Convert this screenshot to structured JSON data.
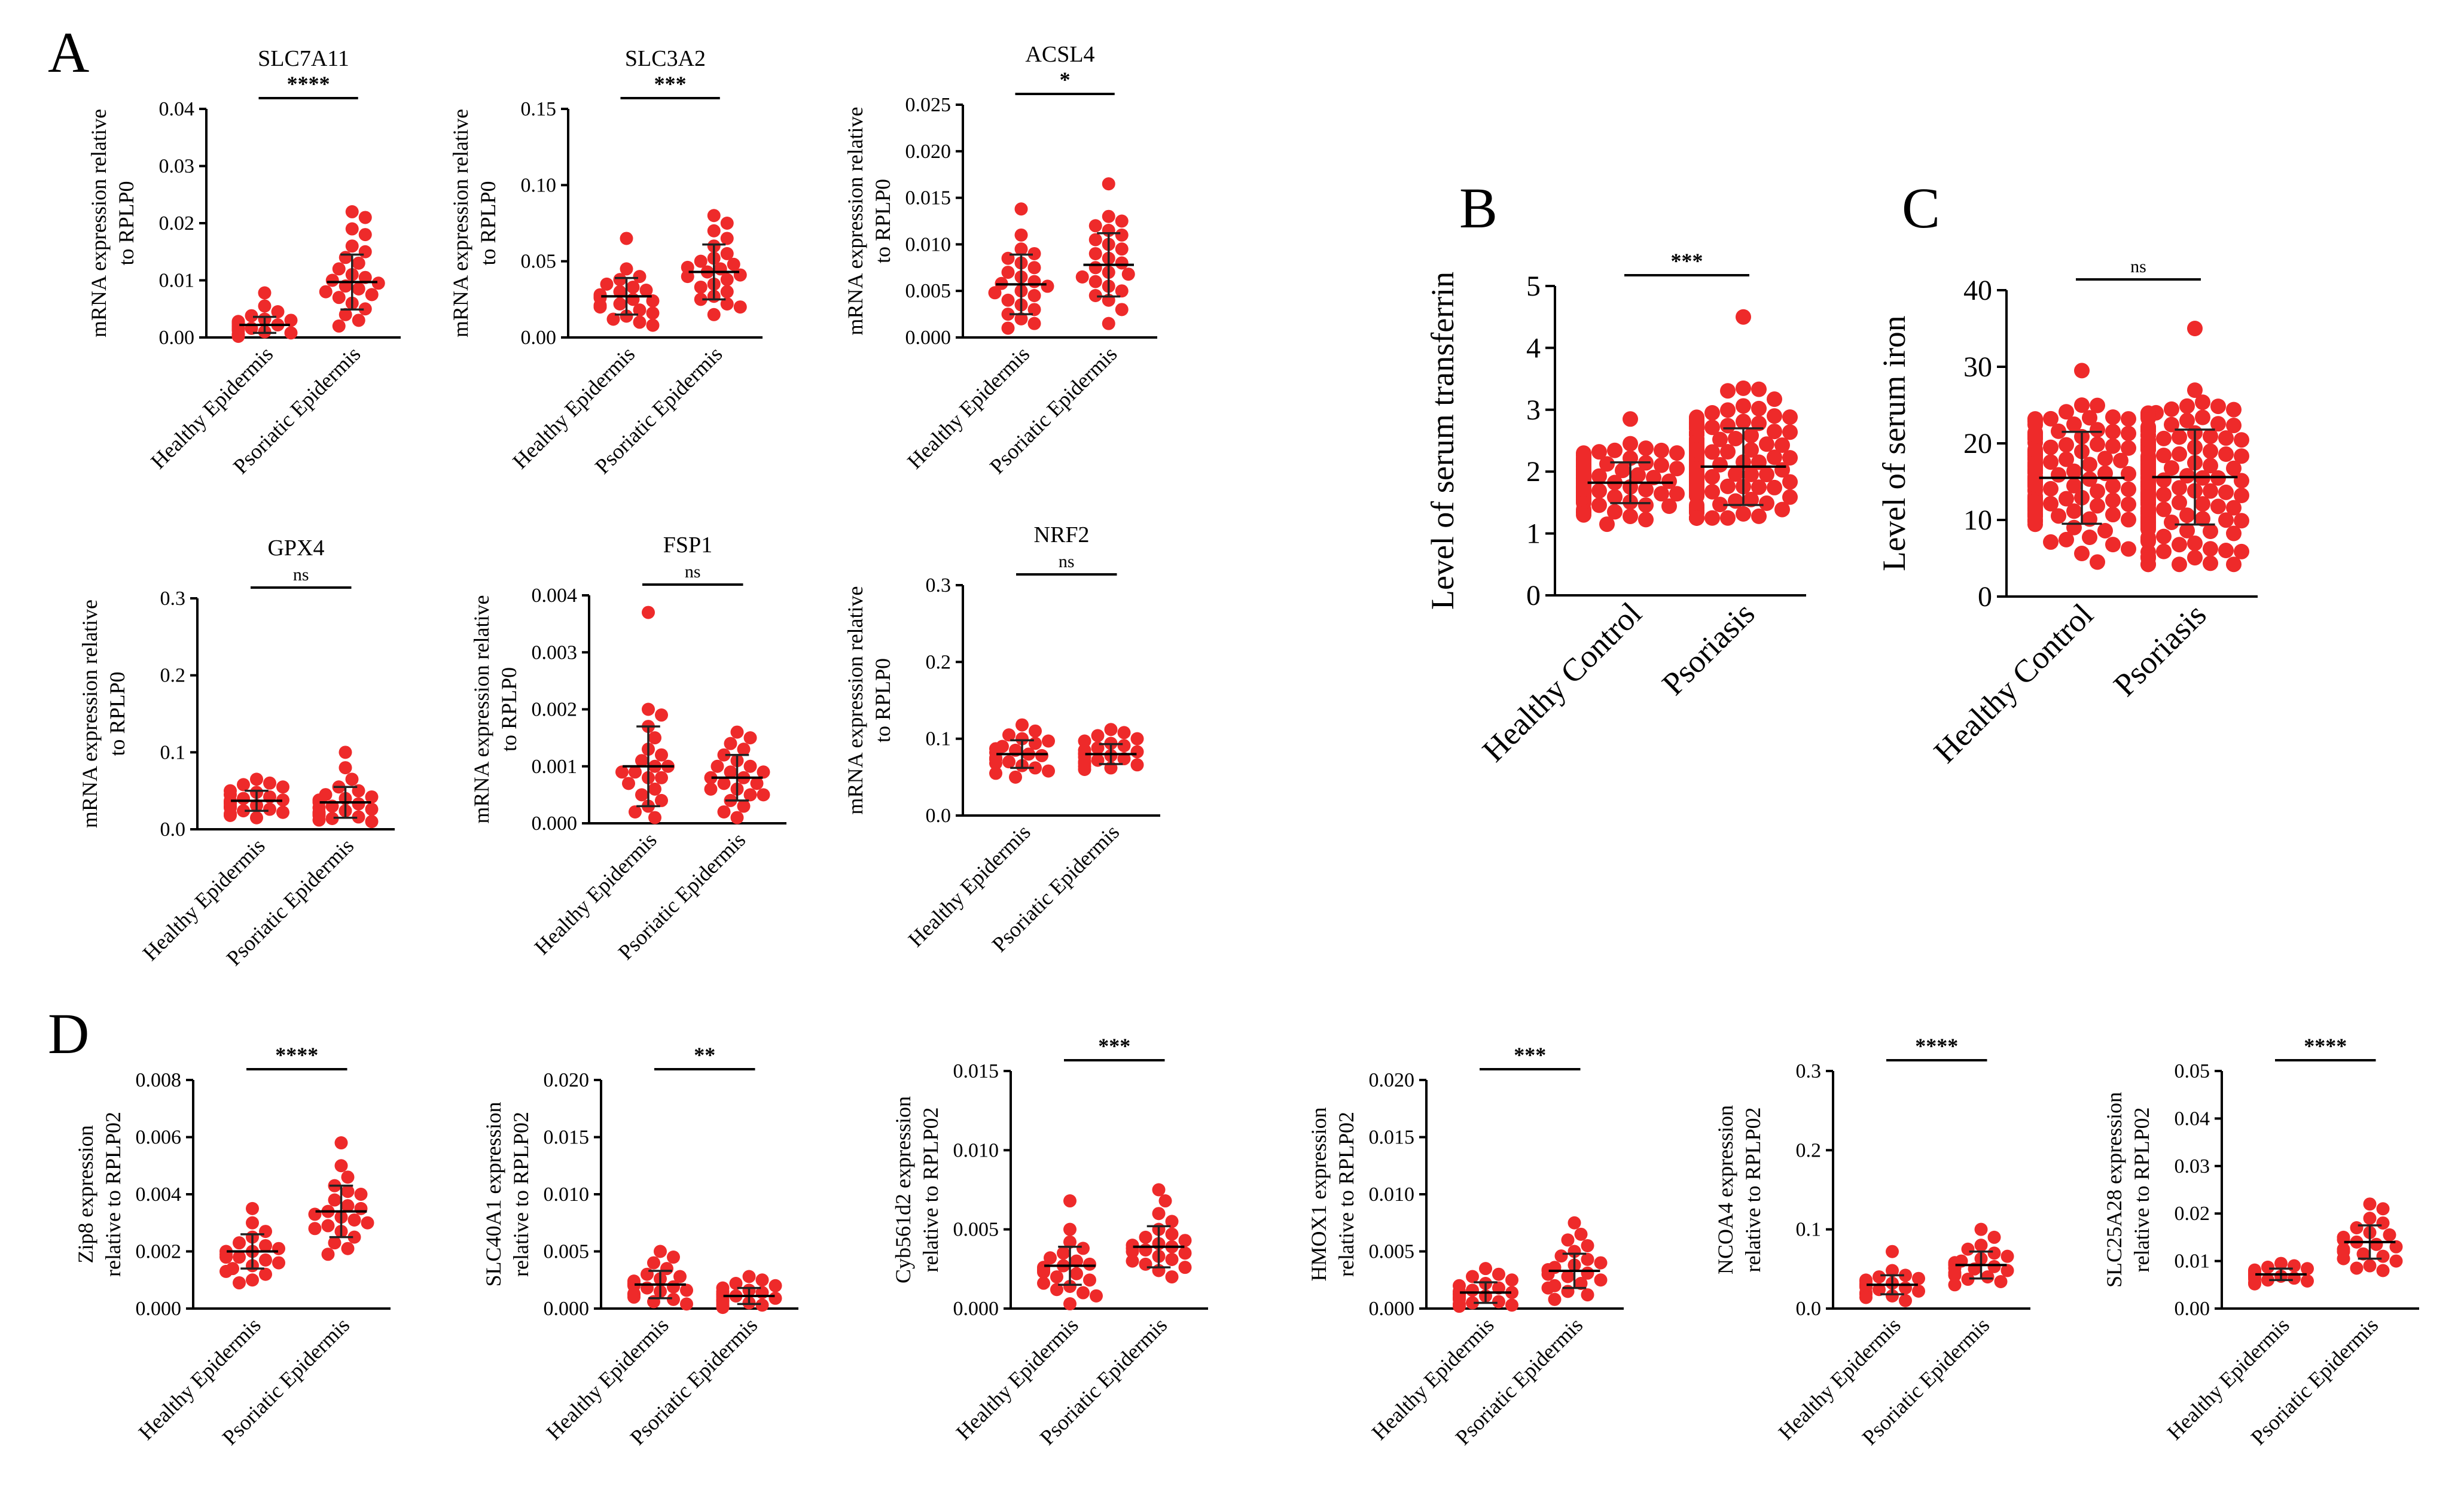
{
  "panel_labels": [
    "A",
    "B",
    "C",
    "D"
  ],
  "point_color": "#ee2a2a",
  "chart_data": [
    {
      "id": "A1",
      "panel": "A",
      "type": "scatter",
      "title": "SLC7A11",
      "ylabel_lines": [
        "mRNA expression relative",
        "to RPLP0"
      ],
      "categories": [
        "Healthy Epidermis",
        "Psoriatic Epidermis"
      ],
      "ylim": [
        0,
        0.04
      ],
      "yticks": [
        "0.00",
        "0.01",
        "0.02",
        "0.03",
        "0.04"
      ],
      "significance": "****",
      "series": [
        {
          "mean": 0.0022,
          "sd": 0.0014,
          "values": [
            0.0078,
            0.0055,
            0.0045,
            0.0038,
            0.0032,
            0.003,
            0.0028,
            0.0026,
            0.0024,
            0.0022,
            0.002,
            0.0019,
            0.0018,
            0.0016,
            0.0015,
            0.0014,
            0.0012,
            0.001,
            0.0008,
            0.0006,
            0.0004,
            0.0003,
            0.0002
          ]
        },
        {
          "mean": 0.0097,
          "sd": 0.0048,
          "values": [
            0.022,
            0.021,
            0.019,
            0.018,
            0.016,
            0.015,
            0.014,
            0.013,
            0.012,
            0.011,
            0.0105,
            0.01,
            0.0095,
            0.009,
            0.0085,
            0.008,
            0.0075,
            0.007,
            0.006,
            0.005,
            0.004,
            0.003,
            0.002
          ]
        }
      ]
    },
    {
      "id": "A2",
      "panel": "A",
      "type": "scatter",
      "title": "SLC3A2",
      "ylabel_lines": [
        "mRNA expression relative",
        "to RPLP0"
      ],
      "categories": [
        "Healthy Epidermis",
        "Psoriatic Epidermis"
      ],
      "ylim": [
        0,
        0.15
      ],
      "yticks": [
        "0.00",
        "0.05",
        "0.10",
        "0.15"
      ],
      "significance": "***",
      "series": [
        {
          "mean": 0.027,
          "sd": 0.012,
          "values": [
            0.065,
            0.045,
            0.04,
            0.038,
            0.035,
            0.033,
            0.031,
            0.03,
            0.028,
            0.027,
            0.026,
            0.025,
            0.024,
            0.022,
            0.021,
            0.02,
            0.018,
            0.016,
            0.014,
            0.012,
            0.01,
            0.008
          ]
        },
        {
          "mean": 0.043,
          "sd": 0.018,
          "values": [
            0.08,
            0.075,
            0.07,
            0.065,
            0.06,
            0.055,
            0.052,
            0.05,
            0.048,
            0.046,
            0.045,
            0.043,
            0.041,
            0.04,
            0.038,
            0.035,
            0.033,
            0.03,
            0.027,
            0.025,
            0.022,
            0.02,
            0.015
          ]
        }
      ]
    },
    {
      "id": "A3",
      "panel": "A",
      "type": "scatter",
      "title": "ACSL4",
      "ylabel_lines": [
        "mRNA expression relative",
        "to RPLP0"
      ],
      "categories": [
        "Healthy Epidermis",
        "Psoriatic Epidermis"
      ],
      "ylim": [
        0,
        0.025
      ],
      "yticks": [
        "0.000",
        "0.005",
        "0.010",
        "0.015",
        "0.020",
        "0.025"
      ],
      "significance": "*",
      "series": [
        {
          "mean": 0.0057,
          "sd": 0.0032,
          "values": [
            0.0138,
            0.011,
            0.0095,
            0.009,
            0.0085,
            0.008,
            0.0075,
            0.007,
            0.0065,
            0.006,
            0.0058,
            0.0055,
            0.005,
            0.0048,
            0.0045,
            0.004,
            0.0035,
            0.003,
            0.0025,
            0.002,
            0.0015,
            0.001
          ]
        },
        {
          "mean": 0.0078,
          "sd": 0.0034,
          "values": [
            0.0165,
            0.013,
            0.0125,
            0.012,
            0.0115,
            0.011,
            0.0105,
            0.01,
            0.0095,
            0.009,
            0.0085,
            0.008,
            0.0075,
            0.007,
            0.0068,
            0.0065,
            0.006,
            0.0055,
            0.005,
            0.0045,
            0.004,
            0.003,
            0.0015
          ]
        }
      ]
    },
    {
      "id": "A4",
      "panel": "A",
      "type": "scatter",
      "title": "GPX4",
      "ylabel_lines": [
        "mRNA expression relative",
        "to RPLP0"
      ],
      "categories": [
        "Healthy Epidermis",
        "Psoriatic Epidermis"
      ],
      "ylim": [
        0,
        0.3
      ],
      "yticks": [
        "0.0",
        "0.1",
        "0.2",
        "0.3"
      ],
      "significance": "ns",
      "series": [
        {
          "mean": 0.037,
          "sd": 0.013,
          "values": [
            0.065,
            0.06,
            0.058,
            0.055,
            0.05,
            0.048,
            0.045,
            0.042,
            0.04,
            0.038,
            0.037,
            0.035,
            0.033,
            0.031,
            0.03,
            0.028,
            0.026,
            0.024,
            0.022,
            0.02,
            0.018,
            0.015
          ]
        },
        {
          "mean": 0.035,
          "sd": 0.02,
          "values": [
            0.1,
            0.08,
            0.065,
            0.055,
            0.05,
            0.045,
            0.042,
            0.04,
            0.038,
            0.035,
            0.033,
            0.03,
            0.028,
            0.026,
            0.024,
            0.022,
            0.02,
            0.018,
            0.016,
            0.014,
            0.012,
            0.01
          ]
        }
      ]
    },
    {
      "id": "A5",
      "panel": "A",
      "type": "scatter",
      "title": "FSP1",
      "ylabel_lines": [
        "mRNA expression relative",
        "to RPLP0"
      ],
      "categories": [
        "Healthy Epidermis",
        "Psoriatic Epidermis"
      ],
      "ylim": [
        0,
        0.004
      ],
      "yticks": [
        "0.000",
        "0.001",
        "0.002",
        "0.003",
        "0.004"
      ],
      "significance": "ns",
      "series": [
        {
          "mean": 0.001,
          "sd": 0.0007,
          "values": [
            0.0037,
            0.002,
            0.0019,
            0.0017,
            0.0015,
            0.0013,
            0.0012,
            0.0011,
            0.001,
            0.001,
            0.0009,
            0.0009,
            0.0008,
            0.0008,
            0.0007,
            0.0006,
            0.0005,
            0.0004,
            0.0003,
            0.0002,
            0.0001
          ]
        },
        {
          "mean": 0.0008,
          "sd": 0.0004,
          "values": [
            0.0016,
            0.0015,
            0.0014,
            0.0013,
            0.0012,
            0.0011,
            0.001,
            0.001,
            0.0009,
            0.0009,
            0.0008,
            0.0008,
            0.0007,
            0.0007,
            0.0006,
            0.0006,
            0.0005,
            0.0005,
            0.0004,
            0.0003,
            0.0002,
            0.0001
          ]
        }
      ]
    },
    {
      "id": "A6",
      "panel": "A",
      "type": "scatter",
      "title": "NRF2",
      "ylabel_lines": [
        "mRNA expression relative",
        "to RPLP0"
      ],
      "categories": [
        "Healthy Epidermis",
        "Psoriatic Epidermis"
      ],
      "ylim": [
        0,
        0.3
      ],
      "yticks": [
        "0.0",
        "0.1",
        "0.2",
        "0.3"
      ],
      "significance": "ns",
      "series": [
        {
          "mean": 0.08,
          "sd": 0.018,
          "values": [
            0.118,
            0.11,
            0.105,
            0.1,
            0.097,
            0.094,
            0.09,
            0.087,
            0.085,
            0.082,
            0.08,
            0.078,
            0.075,
            0.073,
            0.07,
            0.068,
            0.065,
            0.062,
            0.058,
            0.055,
            0.05
          ]
        },
        {
          "mean": 0.08,
          "sd": 0.013,
          "values": [
            0.112,
            0.108,
            0.104,
            0.1,
            0.097,
            0.094,
            0.091,
            0.088,
            0.085,
            0.083,
            0.081,
            0.08,
            0.078,
            0.076,
            0.074,
            0.072,
            0.07,
            0.068,
            0.066,
            0.064,
            0.062,
            0.06
          ]
        }
      ]
    },
    {
      "id": "B",
      "panel": "B",
      "type": "scatter",
      "big": true,
      "title": "",
      "ylabel_lines": [
        "Level of serum transferrin"
      ],
      "categories": [
        "Healthy Control",
        "Psoriasis"
      ],
      "ylim": [
        0,
        5
      ],
      "yticks": [
        "0",
        "1",
        "2",
        "3",
        "4",
        "5"
      ],
      "significance": "***",
      "series": [
        {
          "mean": 1.82,
          "sd": 0.33,
          "n": 160,
          "min": 1.15,
          "max": 2.85,
          "spread": 0.33
        },
        {
          "mean": 2.08,
          "sd": 0.62,
          "n": 220,
          "min": 1.25,
          "max": 4.5,
          "spread": 0.48
        }
      ]
    },
    {
      "id": "C",
      "panel": "C",
      "type": "scatter",
      "big": true,
      "title": "",
      "ylabel_lines": [
        "Level of serum iron"
      ],
      "categories": [
        "Healthy Control",
        "Psoriasis"
      ],
      "ylim": [
        0,
        40
      ],
      "yticks": [
        "0",
        "10",
        "20",
        "30",
        "40"
      ],
      "significance": "ns",
      "series": [
        {
          "mean": 15.5,
          "sd": 6.0,
          "n": 160,
          "min": 4.5,
          "max": 29.5,
          "spread": 6.5
        },
        {
          "mean": 15.6,
          "sd": 6.2,
          "n": 220,
          "min": 4.2,
          "max": 35.0,
          "spread": 6.5
        }
      ]
    },
    {
      "id": "D1",
      "panel": "D",
      "type": "scatter",
      "title": "",
      "ylabel_lines": [
        "Zip8 expression",
        "relative to RPLP02"
      ],
      "categories": [
        "Healthy Epidermis",
        "Psoriatic Epidermis"
      ],
      "ylim": [
        0,
        0.008
      ],
      "yticks": [
        "0.000",
        "0.002",
        "0.004",
        "0.006",
        "0.008"
      ],
      "significance": "****",
      "series": [
        {
          "mean": 0.002,
          "sd": 0.0006,
          "values": [
            0.0035,
            0.003,
            0.0027,
            0.0025,
            0.0023,
            0.0022,
            0.0021,
            0.002,
            0.002,
            0.0019,
            0.0018,
            0.0018,
            0.0017,
            0.0016,
            0.0015,
            0.0014,
            0.0013,
            0.0012,
            0.001,
            0.0009
          ]
        },
        {
          "mean": 0.0034,
          "sd": 0.0009,
          "values": [
            0.0058,
            0.005,
            0.0046,
            0.0043,
            0.0041,
            0.004,
            0.0038,
            0.0036,
            0.0035,
            0.0034,
            0.0033,
            0.0032,
            0.0031,
            0.003,
            0.0029,
            0.0028,
            0.0027,
            0.0025,
            0.0023,
            0.0021,
            0.0019
          ]
        }
      ]
    },
    {
      "id": "D2",
      "panel": "D",
      "type": "scatter",
      "title": "",
      "ylabel_lines": [
        "SLC40A1 expression",
        "relative to RPLP02"
      ],
      "categories": [
        "Healthy Epidermis",
        "Psoriatic Epidermis"
      ],
      "ylim": [
        0,
        0.02
      ],
      "yticks": [
        "0.000",
        "0.005",
        "0.010",
        "0.015",
        "0.020"
      ],
      "significance": "**",
      "series": [
        {
          "mean": 0.0021,
          "sd": 0.0012,
          "values": [
            0.005,
            0.0045,
            0.004,
            0.0035,
            0.003,
            0.0028,
            0.0026,
            0.0024,
            0.0022,
            0.0021,
            0.002,
            0.0019,
            0.0018,
            0.0016,
            0.0015,
            0.0013,
            0.0012,
            0.001,
            0.0008,
            0.0006,
            0.0004
          ]
        },
        {
          "mean": 0.0011,
          "sd": 0.0007,
          "values": [
            0.0028,
            0.0025,
            0.0022,
            0.002,
            0.0018,
            0.0016,
            0.0015,
            0.0014,
            0.0013,
            0.0012,
            0.0011,
            0.001,
            0.0009,
            0.0008,
            0.0007,
            0.0006,
            0.0005,
            0.0004,
            0.0003,
            0.0002,
            0.0001
          ]
        }
      ]
    },
    {
      "id": "D3",
      "panel": "D",
      "type": "scatter",
      "title": "",
      "ylabel_lines": [
        "Cyb561d2 expression",
        "relative to RPLP02"
      ],
      "categories": [
        "Healthy Epidermis",
        "Psoriatic Epidermis"
      ],
      "ylim": [
        0,
        0.015
      ],
      "yticks": [
        "0.000",
        "0.005",
        "0.010",
        "0.015"
      ],
      "significance": "***",
      "series": [
        {
          "mean": 0.0027,
          "sd": 0.0012,
          "values": [
            0.0068,
            0.005,
            0.0042,
            0.0038,
            0.0035,
            0.0032,
            0.003,
            0.0028,
            0.0027,
            0.0026,
            0.0025,
            0.0024,
            0.0023,
            0.0022,
            0.002,
            0.0018,
            0.0016,
            0.0014,
            0.0012,
            0.001,
            0.0008,
            0.0003
          ]
        },
        {
          "mean": 0.0039,
          "sd": 0.0013,
          "values": [
            0.0075,
            0.0068,
            0.006,
            0.0055,
            0.005,
            0.0047,
            0.0045,
            0.0043,
            0.0041,
            0.004,
            0.0039,
            0.0038,
            0.0037,
            0.0036,
            0.0035,
            0.0033,
            0.0031,
            0.003,
            0.0028,
            0.0026,
            0.0024,
            0.002
          ]
        }
      ]
    },
    {
      "id": "D4",
      "panel": "D",
      "type": "scatter",
      "title": "",
      "ylabel_lines": [
        "HMOX1 expression",
        "relative to RPLP02"
      ],
      "categories": [
        "Healthy Epidermis",
        "Psoriatic Epidermis"
      ],
      "ylim": [
        0,
        0.02
      ],
      "yticks": [
        "0.000",
        "0.005",
        "0.010",
        "0.015",
        "0.020"
      ],
      "significance": "***",
      "series": [
        {
          "mean": 0.0014,
          "sd": 0.0009,
          "values": [
            0.0035,
            0.003,
            0.0028,
            0.0025,
            0.0022,
            0.002,
            0.0018,
            0.0016,
            0.0015,
            0.0014,
            0.0013,
            0.0012,
            0.0011,
            0.001,
            0.0009,
            0.0008,
            0.0006,
            0.0005,
            0.0004,
            0.0003,
            0.0002
          ]
        },
        {
          "mean": 0.0033,
          "sd": 0.0015,
          "values": [
            0.0075,
            0.0065,
            0.006,
            0.0055,
            0.005,
            0.0046,
            0.0043,
            0.004,
            0.0038,
            0.0036,
            0.0034,
            0.0033,
            0.0031,
            0.003,
            0.0028,
            0.0025,
            0.0022,
            0.002,
            0.0018,
            0.0015,
            0.0012,
            0.0008
          ]
        }
      ]
    },
    {
      "id": "D5",
      "panel": "D",
      "type": "scatter",
      "title": "",
      "ylabel_lines": [
        "NCOA4 expression",
        "relative to RPLP02"
      ],
      "categories": [
        "Healthy Epidermis",
        "Psoriatic Epidermis"
      ],
      "ylim": [
        0,
        0.3
      ],
      "yticks": [
        "0.0",
        "0.1",
        "0.2",
        "0.3"
      ],
      "significance": "****",
      "series": [
        {
          "mean": 0.03,
          "sd": 0.012,
          "values": [
            0.072,
            0.048,
            0.042,
            0.04,
            0.038,
            0.036,
            0.034,
            0.032,
            0.031,
            0.03,
            0.029,
            0.028,
            0.027,
            0.026,
            0.024,
            0.022,
            0.02,
            0.018,
            0.016,
            0.014,
            0.01
          ]
        },
        {
          "mean": 0.055,
          "sd": 0.017,
          "values": [
            0.1,
            0.09,
            0.08,
            0.075,
            0.07,
            0.066,
            0.063,
            0.06,
            0.058,
            0.056,
            0.055,
            0.053,
            0.051,
            0.05,
            0.048,
            0.045,
            0.042,
            0.04,
            0.037,
            0.034,
            0.03
          ]
        }
      ]
    },
    {
      "id": "D6",
      "panel": "D",
      "type": "scatter",
      "title": "",
      "ylabel_lines": [
        "SLC25A28 expression",
        "relative to RPLP02"
      ],
      "categories": [
        "Healthy Epidermis",
        "Psoriatic Epidermis"
      ],
      "ylim": [
        0,
        0.05
      ],
      "yticks": [
        "0.00",
        "0.01",
        "0.02",
        "0.03",
        "0.04",
        "0.05"
      ],
      "significance": "****",
      "series": [
        {
          "mean": 0.0072,
          "sd": 0.0012,
          "values": [
            0.0095,
            0.009,
            0.0087,
            0.0084,
            0.0081,
            0.0079,
            0.0077,
            0.0075,
            0.0073,
            0.0072,
            0.0071,
            0.007,
            0.0068,
            0.0066,
            0.0064,
            0.0062,
            0.006,
            0.0058,
            0.0055,
            0.0052
          ]
        },
        {
          "mean": 0.014,
          "sd": 0.0035,
          "values": [
            0.022,
            0.021,
            0.019,
            0.018,
            0.017,
            0.016,
            0.0155,
            0.015,
            0.0145,
            0.014,
            0.0135,
            0.013,
            0.0125,
            0.012,
            0.0115,
            0.011,
            0.0105,
            0.01,
            0.009,
            0.0085,
            0.008
          ]
        }
      ]
    }
  ]
}
